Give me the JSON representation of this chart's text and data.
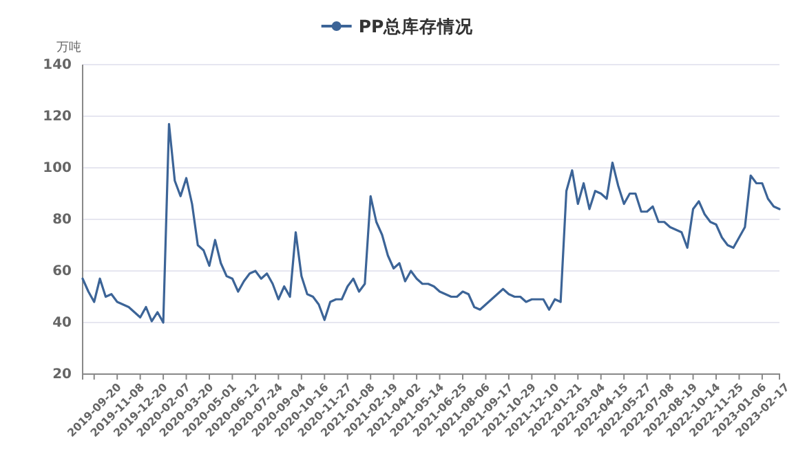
{
  "chart_data": {
    "type": "line",
    "ylabel": "万吨",
    "legend": "top",
    "grid": "y",
    "marker": "none",
    "line_style": "solid",
    "ylim": [
      20,
      140
    ],
    "yticks": [
      20,
      40,
      60,
      80,
      100,
      120,
      140
    ],
    "categories": [
      null,
      null,
      "2019-09-20",
      null,
      null,
      null,
      "2019-11-08",
      null,
      null,
      null,
      "2019-12-20",
      null,
      null,
      null,
      "2020-02-07",
      null,
      null,
      null,
      "2020-03-20",
      null,
      null,
      null,
      "2020-05-01",
      null,
      null,
      null,
      "2020-06-12",
      null,
      null,
      null,
      "2020-07-24",
      null,
      null,
      null,
      "2020-09-04",
      null,
      null,
      null,
      "2020-10-16",
      null,
      null,
      null,
      "2020-11-27",
      null,
      null,
      null,
      "2021-01-08",
      null,
      null,
      null,
      "2021-02-19",
      null,
      null,
      null,
      "2021-04-02",
      null,
      null,
      null,
      "2021-05-14",
      null,
      null,
      null,
      "2021-06-25",
      null,
      null,
      null,
      "2021-08-06",
      null,
      null,
      null,
      "2021-09-17",
      null,
      null,
      null,
      "2021-10-29",
      null,
      null,
      null,
      "2021-12-10",
      null,
      null,
      null,
      "2022-01-21",
      null,
      null,
      null,
      "2022-03-04",
      null,
      null,
      null,
      "2022-04-15",
      null,
      null,
      null,
      "2022-05-27",
      null,
      null,
      null,
      "2022-07-08",
      null,
      null,
      null,
      "2022-08-19",
      null,
      null,
      null,
      "2022-10-14",
      null,
      null,
      null,
      "2022-11-25",
      null,
      null,
      null,
      "2023-01-06",
      null,
      null,
      null,
      "2023-02-17",
      null,
      null,
      null
    ],
    "series": [
      {
        "name": "PP总库存情况",
        "color": "#3c6497",
        "values": [
          57,
          52,
          48,
          57,
          50,
          51,
          48,
          47,
          46,
          44,
          42,
          46,
          40.5,
          44,
          40,
          117,
          95,
          89,
          96,
          86,
          70,
          68,
          62,
          72,
          63,
          58,
          57,
          52,
          56,
          59,
          60,
          57,
          59,
          55,
          49,
          54,
          50,
          75,
          58,
          51,
          50,
          47,
          41,
          48,
          49,
          49,
          54,
          57,
          52,
          55,
          89,
          79,
          74,
          66,
          61,
          63,
          56,
          60,
          57,
          55,
          55,
          54,
          52,
          51,
          50,
          50,
          52,
          51,
          46,
          45,
          47,
          49,
          51,
          53,
          51,
          50,
          50,
          48,
          49,
          49,
          49,
          45,
          49,
          48,
          91,
          99,
          86,
          94,
          84,
          91,
          90,
          88,
          102,
          93,
          86,
          90,
          90,
          83,
          83,
          85,
          79,
          79,
          77,
          76,
          75,
          69,
          84,
          87,
          82,
          79,
          78,
          73,
          70,
          69,
          73,
          77,
          97,
          94,
          94,
          88,
          85,
          84
        ]
      }
    ]
  }
}
